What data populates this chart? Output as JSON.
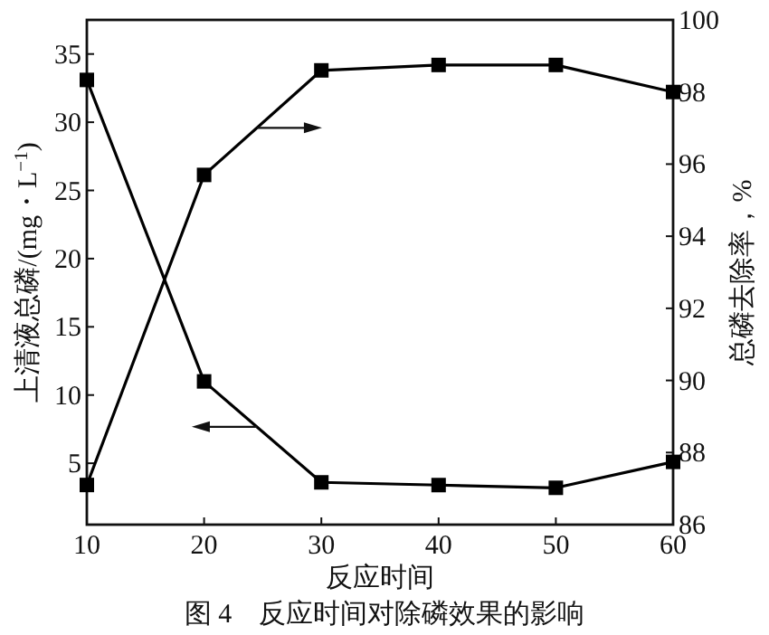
{
  "chart_data": {
    "type": "line",
    "x": [
      10,
      20,
      30,
      40,
      50,
      60
    ],
    "xlim": [
      10,
      60
    ],
    "xticks": [
      10,
      20,
      30,
      40,
      50,
      60
    ],
    "ylim": [
      0.5,
      37.5
    ],
    "yticks": [
      5,
      10,
      15,
      20,
      25,
      30,
      35
    ],
    "y2lim": [
      86,
      100
    ],
    "y2ticks": [
      86,
      88,
      90,
      92,
      94,
      96,
      98,
      100
    ],
    "xlabel": "反应时间",
    "ylabel": "上清液总磷/(mg・L$^{−1}$)",
    "y2label": "总磷去除率，%",
    "marker": "square",
    "line_style": "solid",
    "series": [
      {
        "color": "#000000",
        "values": [
          33.1,
          11.0,
          3.6,
          3.4,
          3.2,
          5.1
        ]
      },
      {
        "color": "#000000",
        "axis": "y2",
        "values": [
          87.1,
          95.7,
          98.6,
          98.75,
          98.75,
          98.0
        ]
      }
    ],
    "annotations": [
      "图 4　反应时间对除磷效果的影响"
    ]
  }
}
